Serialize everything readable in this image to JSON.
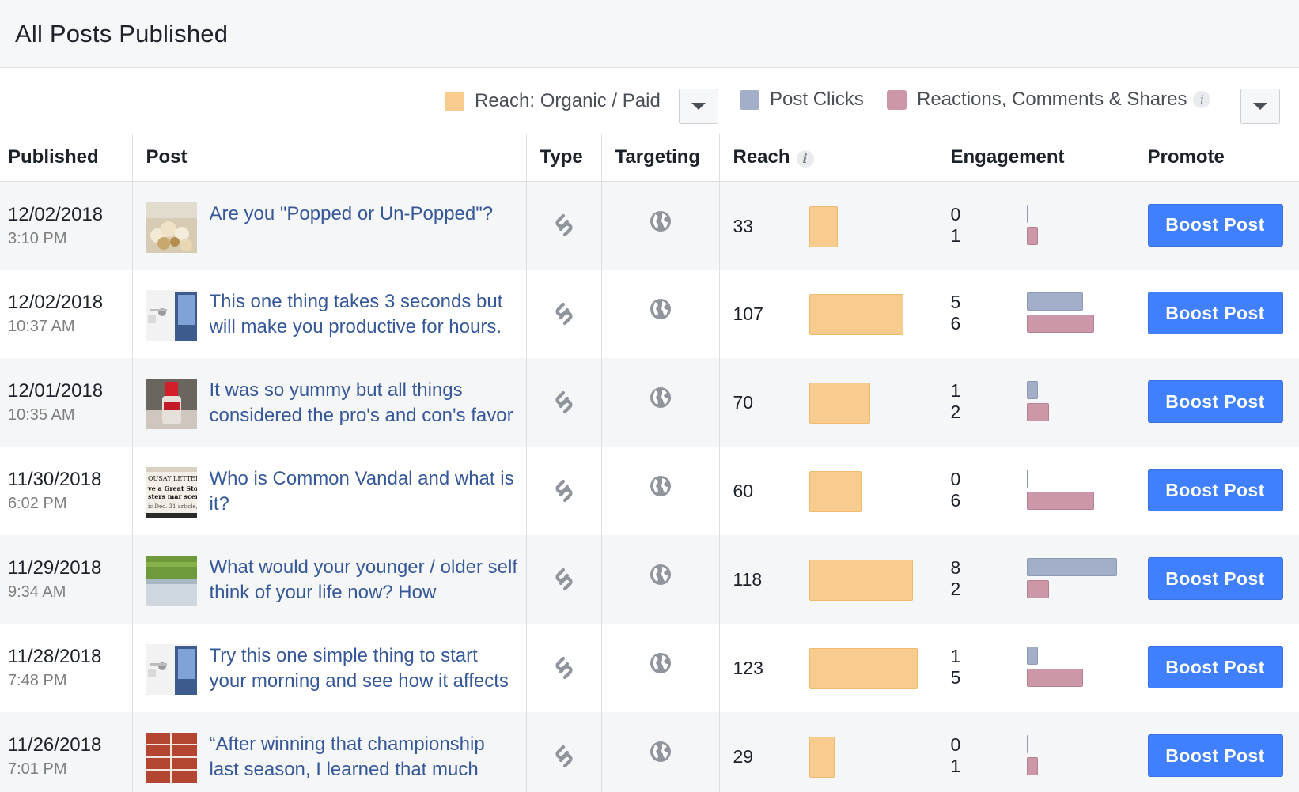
{
  "header": {
    "title": "All Posts Published"
  },
  "legend": {
    "reach_label": "Reach: Organic / Paid",
    "clicks_label": "Post Clicks",
    "engagement_label": "Reactions, Comments & Shares",
    "colors": {
      "reach": "#f8cc8f",
      "clicks": "#a3aec9",
      "reactions": "#cc97a6"
    }
  },
  "table": {
    "columns": {
      "published": "Published",
      "post": "Post",
      "type": "Type",
      "targeting": "Targeting",
      "reach": "Reach",
      "engagement": "Engagement",
      "promote": "Promote"
    },
    "rows": [
      {
        "date": "12/02/2018",
        "time": "3:10 PM",
        "text": "Are you \"Popped or Un-Popped\"?",
        "thumb": "popcorn",
        "reach": 33,
        "clicks": 0,
        "reactions": 1,
        "boost": "Boost Post"
      },
      {
        "date": "12/02/2018",
        "time": "10:37 AM",
        "text": "This one thing takes 3 seconds but will make you productive for hours.",
        "thumb": "desk",
        "reach": 107,
        "clicks": 5,
        "reactions": 6,
        "boost": "Boost Post"
      },
      {
        "date": "12/01/2018",
        "time": "10:35 AM",
        "text": "It was so yummy but all things considered the pro's and con's favor",
        "thumb": "bottle",
        "reach": 70,
        "clicks": 1,
        "reactions": 2,
        "boost": "Boost Post"
      },
      {
        "date": "11/30/2018",
        "time": "6:02 PM",
        "text": "Who is Common Vandal and what is it?",
        "thumb": "newspaper",
        "reach": 60,
        "clicks": 0,
        "reactions": 6,
        "boost": "Boost Post"
      },
      {
        "date": "11/29/2018",
        "time": "9:34 AM",
        "text": "What would your younger / older self think of your life now? How",
        "thumb": "field",
        "reach": 118,
        "clicks": 8,
        "reactions": 2,
        "boost": "Boost Post"
      },
      {
        "date": "11/28/2018",
        "time": "7:48 PM",
        "text": "Try this one simple thing to start your morning and see how it affects",
        "thumb": "desk",
        "reach": 123,
        "clicks": 1,
        "reactions": 5,
        "boost": "Boost Post"
      },
      {
        "date": "11/26/2018",
        "time": "7:01 PM",
        "text": "“After winning that championship last season, I learned that much",
        "thumb": "track",
        "reach": 29,
        "clicks": 0,
        "reactions": 1,
        "boost": "Boost Post"
      }
    ]
  }
}
